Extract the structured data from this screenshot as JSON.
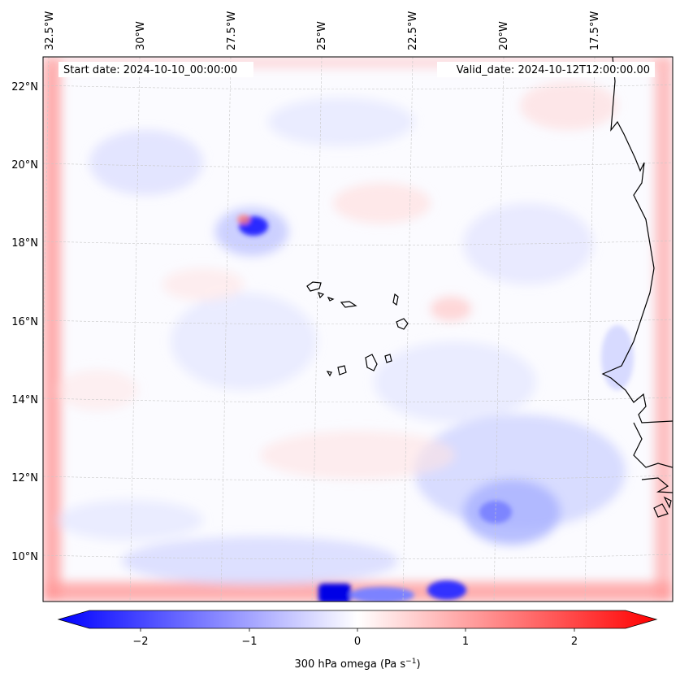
{
  "map": {
    "start_date": "Start date: 2024-10-10_00:00:00",
    "valid_date": "Valid_date: 2024-10-12T12:00:00.00",
    "lon_labels": [
      "32.5°W",
      "30°W",
      "27.5°W",
      "25°W",
      "22.5°W",
      "20°W",
      "17.5°W"
    ],
    "lat_labels": [
      "22°N",
      "20°N",
      "18°N",
      "16°N",
      "14°N",
      "12°N",
      "10°N"
    ],
    "colorbar": {
      "label": "300 hPa omega (Pa s",
      "label_sup": "−1",
      "label_close": ")",
      "ticks": [
        "−2",
        "−1",
        "0",
        "1",
        "2"
      ],
      "range": [
        -2.6,
        2.6
      ],
      "colormap": "bwr",
      "low_color": "#0000ff",
      "mid_color": "#ffffff",
      "high_color": "#ff0000"
    },
    "features": {
      "coastline_color": "#000000",
      "gridline_color": "#c8c8c8",
      "islands": "Cabo Verde",
      "strong_ascent_spot": "near 18.5°N 26.5°W",
      "boundary_artifacts": "red frame along domain edges, blue blobs at southern edge near 25°W and 22°W"
    }
  }
}
